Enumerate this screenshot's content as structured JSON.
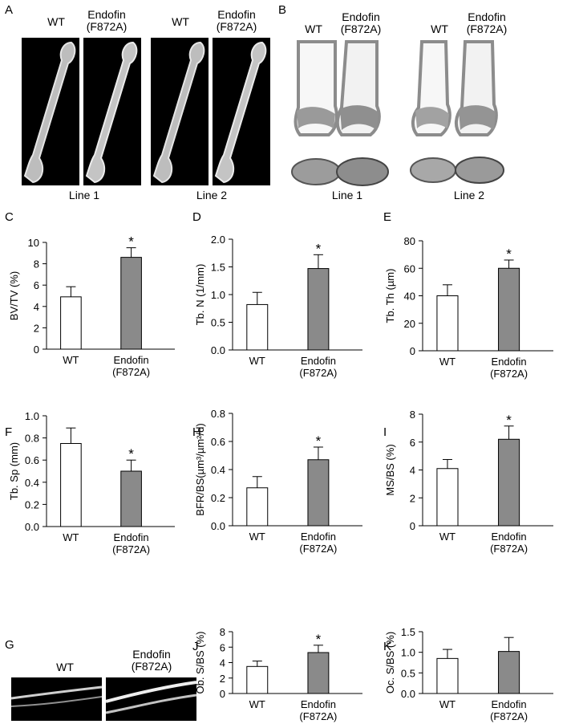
{
  "panels": {
    "A": {
      "letter": "A",
      "lines": [
        {
          "wt": "WT",
          "mut1": "Endofin",
          "mut2": "(F872A)",
          "caption": "Line 1"
        },
        {
          "wt": "WT",
          "mut1": "Endofin",
          "mut2": "(F872A)",
          "caption": "Line 2"
        }
      ]
    },
    "B": {
      "letter": "B",
      "lines": [
        {
          "wt": "WT",
          "mut1": "Endofin",
          "mut2": "(F872A)",
          "caption": "Line 1"
        },
        {
          "wt": "WT",
          "mut1": "Endofin",
          "mut2": "(F872A)",
          "caption": "Line 2"
        }
      ]
    },
    "G": {
      "letter": "G",
      "wt": "WT",
      "mut1": "Endofin",
      "mut2": "(F872A)"
    }
  },
  "chart_data": [
    {
      "id": "C",
      "type": "bar",
      "letter": "C",
      "ylabel": "BV/TV (%)",
      "ylim": [
        0,
        10
      ],
      "yticks": [
        "0",
        "2",
        "4",
        "6",
        "8",
        "10"
      ],
      "categories": [
        [
          "WT"
        ],
        [
          "Endofin",
          "(F872A)"
        ]
      ],
      "values": [
        4.9,
        8.6
      ],
      "errors": [
        0.95,
        0.9
      ],
      "significance": [
        "",
        "*"
      ],
      "colors": [
        "#ffffff",
        "#8a8a8a"
      ]
    },
    {
      "id": "D",
      "type": "bar",
      "letter": "D",
      "ylabel": "Tb. N (1/mm)",
      "ylim": [
        0,
        2
      ],
      "yticks": [
        "0.0",
        "0.5",
        "1.0",
        "1.5",
        "2.0"
      ],
      "categories": [
        [
          "WT"
        ],
        [
          "Endofin",
          "(F872A)"
        ]
      ],
      "values": [
        0.82,
        1.47
      ],
      "errors": [
        0.22,
        0.25
      ],
      "significance": [
        "",
        "*"
      ],
      "colors": [
        "#ffffff",
        "#8a8a8a"
      ]
    },
    {
      "id": "E",
      "type": "bar",
      "letter": "E",
      "ylabel": "Tb. Th (µm)",
      "ylim": [
        0,
        80
      ],
      "yticks": [
        "0",
        "20",
        "40",
        "60",
        "80"
      ],
      "categories": [
        [
          "WT"
        ],
        [
          "Endofin",
          "(F872A)"
        ]
      ],
      "values": [
        40,
        60
      ],
      "errors": [
        8,
        6
      ],
      "significance": [
        "",
        "*"
      ],
      "colors": [
        "#ffffff",
        "#8a8a8a"
      ]
    },
    {
      "id": "F",
      "type": "bar",
      "letter": "F",
      "ylabel": "Tb. Sp (mm)",
      "ylim": [
        0,
        1
      ],
      "yticks": [
        "0.0",
        "0.2",
        "0.4",
        "0.6",
        "0.8",
        "1.0"
      ],
      "categories": [
        [
          "WT"
        ],
        [
          "Endofin",
          "(F872A)"
        ]
      ],
      "values": [
        0.75,
        0.5
      ],
      "errors": [
        0.14,
        0.1
      ],
      "significance": [
        "",
        "*"
      ],
      "colors": [
        "#ffffff",
        "#8a8a8a"
      ]
    },
    {
      "id": "H",
      "type": "bar",
      "letter": "H",
      "ylabel": "BFR/BS(µm³/µm²/d)",
      "ylim": [
        0,
        0.8
      ],
      "yticks": [
        "0.0",
        "0.2",
        "0.4",
        "0.6",
        "0.8"
      ],
      "categories": [
        [
          "WT"
        ],
        [
          "Endofin",
          "(F872A)"
        ]
      ],
      "values": [
        0.27,
        0.47
      ],
      "errors": [
        0.08,
        0.09
      ],
      "significance": [
        "",
        "*"
      ],
      "colors": [
        "#ffffff",
        "#8a8a8a"
      ]
    },
    {
      "id": "I",
      "type": "bar",
      "letter": "I",
      "ylabel": "MS/BS (%)",
      "ylim": [
        0,
        8
      ],
      "yticks": [
        "0",
        "2",
        "4",
        "6",
        "8"
      ],
      "categories": [
        [
          "WT"
        ],
        [
          "Endofin",
          "(F872A)"
        ]
      ],
      "values": [
        4.1,
        6.2
      ],
      "errors": [
        0.65,
        0.95
      ],
      "significance": [
        "",
        "*"
      ],
      "colors": [
        "#ffffff",
        "#8a8a8a"
      ]
    },
    {
      "id": "J",
      "type": "bar",
      "letter": "J",
      "ylabel": "Ob. S/BS (%)",
      "ylim": [
        0,
        8
      ],
      "yticks": [
        "0",
        "2",
        "4",
        "6",
        "8"
      ],
      "categories": [
        [
          "WT"
        ],
        [
          "Endofin",
          "(F872A)"
        ]
      ],
      "values": [
        3.5,
        5.3
      ],
      "errors": [
        0.7,
        0.95
      ],
      "significance": [
        "",
        "*"
      ],
      "colors": [
        "#ffffff",
        "#8a8a8a"
      ]
    },
    {
      "id": "K",
      "type": "bar",
      "letter": "K",
      "ylabel": "Oc. S/BS (%)",
      "ylim": [
        0,
        1.5
      ],
      "yticks": [
        "0.0",
        "0.5",
        "1.0",
        "1.5"
      ],
      "categories": [
        [
          "WT"
        ],
        [
          "Endofin",
          "(F872A)"
        ]
      ],
      "values": [
        0.85,
        1.02
      ],
      "errors": [
        0.22,
        0.34
      ],
      "significance": [
        "",
        ""
      ],
      "colors": [
        "#ffffff",
        "#8a8a8a"
      ]
    }
  ]
}
